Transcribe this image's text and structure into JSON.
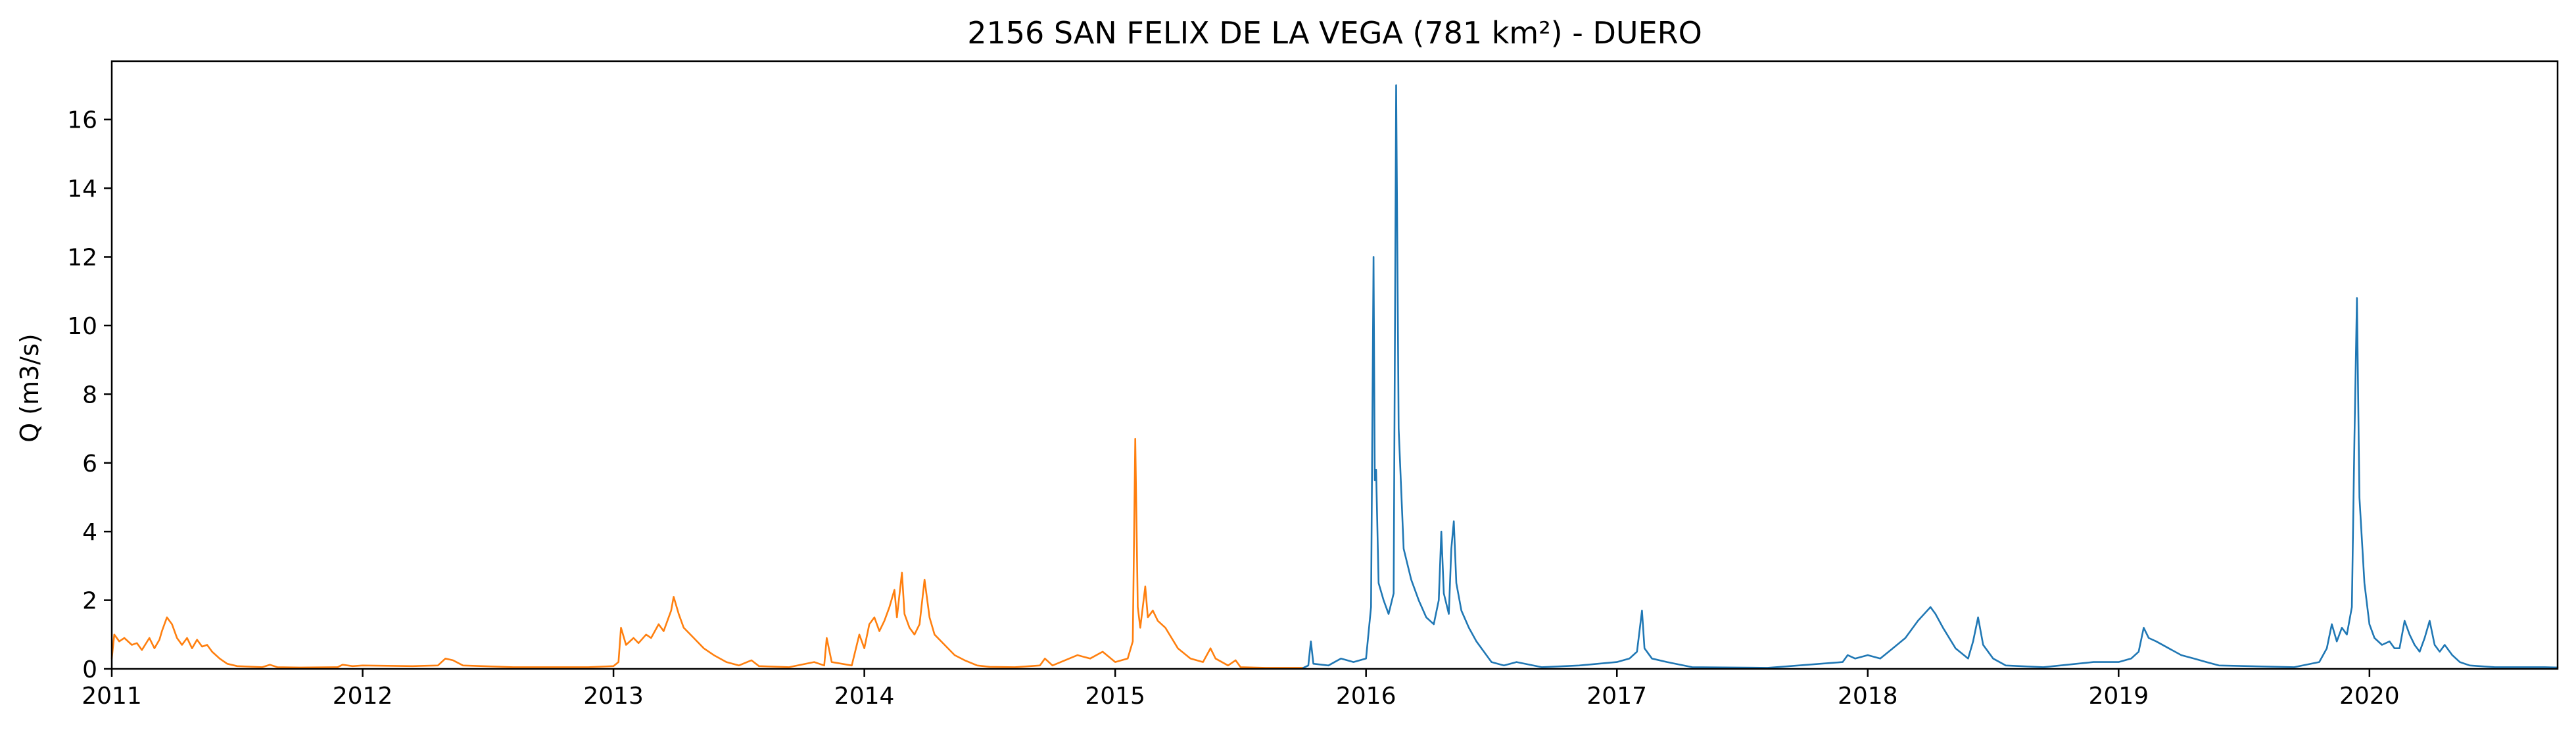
{
  "chart_data": {
    "type": "line",
    "title": "2156 SAN FELIX DE LA VEGA (781 km²) - DUERO",
    "xlabel": "",
    "ylabel": "Q (m3/s)",
    "xlim": [
      2011.0,
      2020.75
    ],
    "ylim": [
      0,
      17.7
    ],
    "x_ticks": [
      2011,
      2012,
      2013,
      2014,
      2015,
      2016,
      2017,
      2018,
      2019,
      2020
    ],
    "x_tick_labels": [
      "2011",
      "2012",
      "2013",
      "2014",
      "2015",
      "2016",
      "2017",
      "2018",
      "2019",
      "2020"
    ],
    "y_ticks": [
      0,
      2,
      4,
      6,
      8,
      10,
      12,
      14,
      16
    ],
    "y_tick_labels": [
      "0",
      "2",
      "4",
      "6",
      "8",
      "10",
      "12",
      "14",
      "16"
    ],
    "grid": false,
    "legend": "none",
    "x_unit": "year",
    "series": [
      {
        "color": "#ff7f0e",
        "points": [
          [
            2011.0,
            0.3
          ],
          [
            2011.01,
            1.0
          ],
          [
            2011.03,
            0.8
          ],
          [
            2011.05,
            0.9
          ],
          [
            2011.08,
            0.7
          ],
          [
            2011.1,
            0.75
          ],
          [
            2011.12,
            0.55
          ],
          [
            2011.15,
            0.9
          ],
          [
            2011.17,
            0.6
          ],
          [
            2011.19,
            0.85
          ],
          [
            2011.2,
            1.1
          ],
          [
            2011.22,
            1.5
          ],
          [
            2011.24,
            1.3
          ],
          [
            2011.26,
            0.9
          ],
          [
            2011.28,
            0.7
          ],
          [
            2011.3,
            0.9
          ],
          [
            2011.32,
            0.6
          ],
          [
            2011.34,
            0.85
          ],
          [
            2011.36,
            0.65
          ],
          [
            2011.38,
            0.7
          ],
          [
            2011.4,
            0.5
          ],
          [
            2011.43,
            0.3
          ],
          [
            2011.46,
            0.15
          ],
          [
            2011.5,
            0.08
          ],
          [
            2011.6,
            0.05
          ],
          [
            2011.63,
            0.12
          ],
          [
            2011.66,
            0.05
          ],
          [
            2011.75,
            0.04
          ],
          [
            2011.9,
            0.05
          ],
          [
            2011.92,
            0.12
          ],
          [
            2011.96,
            0.08
          ],
          [
            2012.0,
            0.1
          ],
          [
            2012.2,
            0.08
          ],
          [
            2012.3,
            0.1
          ],
          [
            2012.33,
            0.3
          ],
          [
            2012.36,
            0.25
          ],
          [
            2012.4,
            0.1
          ],
          [
            2012.6,
            0.05
          ],
          [
            2012.9,
            0.05
          ],
          [
            2013.0,
            0.08
          ],
          [
            2013.02,
            0.2
          ],
          [
            2013.03,
            1.2
          ],
          [
            2013.05,
            0.7
          ],
          [
            2013.08,
            0.9
          ],
          [
            2013.1,
            0.75
          ],
          [
            2013.13,
            1.0
          ],
          [
            2013.15,
            0.9
          ],
          [
            2013.18,
            1.3
          ],
          [
            2013.2,
            1.1
          ],
          [
            2013.23,
            1.7
          ],
          [
            2013.24,
            2.1
          ],
          [
            2013.26,
            1.6
          ],
          [
            2013.28,
            1.2
          ],
          [
            2013.32,
            0.9
          ],
          [
            2013.36,
            0.6
          ],
          [
            2013.4,
            0.4
          ],
          [
            2013.45,
            0.2
          ],
          [
            2013.5,
            0.1
          ],
          [
            2013.55,
            0.25
          ],
          [
            2013.58,
            0.08
          ],
          [
            2013.7,
            0.05
          ],
          [
            2013.8,
            0.2
          ],
          [
            2013.84,
            0.1
          ],
          [
            2013.85,
            0.9
          ],
          [
            2013.87,
            0.2
          ],
          [
            2013.95,
            0.1
          ],
          [
            2013.98,
            1.0
          ],
          [
            2014.0,
            0.6
          ],
          [
            2014.02,
            1.3
          ],
          [
            2014.04,
            1.5
          ],
          [
            2014.06,
            1.1
          ],
          [
            2014.08,
            1.4
          ],
          [
            2014.1,
            1.8
          ],
          [
            2014.12,
            2.3
          ],
          [
            2014.13,
            1.5
          ],
          [
            2014.15,
            2.8
          ],
          [
            2014.16,
            1.6
          ],
          [
            2014.18,
            1.2
          ],
          [
            2014.2,
            1.0
          ],
          [
            2014.22,
            1.3
          ],
          [
            2014.24,
            2.6
          ],
          [
            2014.26,
            1.5
          ],
          [
            2014.28,
            1.0
          ],
          [
            2014.32,
            0.7
          ],
          [
            2014.36,
            0.4
          ],
          [
            2014.4,
            0.25
          ],
          [
            2014.45,
            0.1
          ],
          [
            2014.5,
            0.06
          ],
          [
            2014.6,
            0.05
          ],
          [
            2014.7,
            0.1
          ],
          [
            2014.72,
            0.3
          ],
          [
            2014.75,
            0.1
          ],
          [
            2014.85,
            0.4
          ],
          [
            2014.9,
            0.3
          ],
          [
            2014.95,
            0.5
          ],
          [
            2015.0,
            0.2
          ],
          [
            2015.05,
            0.3
          ],
          [
            2015.07,
            0.8
          ],
          [
            2015.08,
            6.7
          ],
          [
            2015.09,
            1.8
          ],
          [
            2015.1,
            1.2
          ],
          [
            2015.12,
            2.4
          ],
          [
            2015.13,
            1.5
          ],
          [
            2015.15,
            1.7
          ],
          [
            2015.17,
            1.4
          ],
          [
            2015.2,
            1.2
          ],
          [
            2015.25,
            0.6
          ],
          [
            2015.3,
            0.3
          ],
          [
            2015.35,
            0.2
          ],
          [
            2015.38,
            0.6
          ],
          [
            2015.4,
            0.3
          ],
          [
            2015.45,
            0.1
          ],
          [
            2015.48,
            0.25
          ],
          [
            2015.5,
            0.05
          ],
          [
            2015.6,
            0.03
          ],
          [
            2015.7,
            0.03
          ],
          [
            2015.75,
            0.03
          ]
        ]
      },
      {
        "color": "#1f77b4",
        "points": [
          [
            2015.75,
            0.03
          ],
          [
            2015.77,
            0.1
          ],
          [
            2015.78,
            0.8
          ],
          [
            2015.79,
            0.15
          ],
          [
            2015.85,
            0.1
          ],
          [
            2015.9,
            0.3
          ],
          [
            2015.95,
            0.2
          ],
          [
            2016.0,
            0.3
          ],
          [
            2016.02,
            1.8
          ],
          [
            2016.03,
            12.0
          ],
          [
            2016.035,
            5.5
          ],
          [
            2016.04,
            5.8
          ],
          [
            2016.05,
            2.5
          ],
          [
            2016.07,
            2.0
          ],
          [
            2016.09,
            1.6
          ],
          [
            2016.11,
            2.2
          ],
          [
            2016.12,
            17.0
          ],
          [
            2016.13,
            7.0
          ],
          [
            2016.15,
            3.5
          ],
          [
            2016.18,
            2.6
          ],
          [
            2016.21,
            2.0
          ],
          [
            2016.24,
            1.5
          ],
          [
            2016.27,
            1.3
          ],
          [
            2016.29,
            2.0
          ],
          [
            2016.3,
            4.0
          ],
          [
            2016.31,
            2.2
          ],
          [
            2016.33,
            1.6
          ],
          [
            2016.34,
            3.5
          ],
          [
            2016.35,
            4.3
          ],
          [
            2016.36,
            2.5
          ],
          [
            2016.38,
            1.7
          ],
          [
            2016.41,
            1.2
          ],
          [
            2016.44,
            0.8
          ],
          [
            2016.47,
            0.5
          ],
          [
            2016.5,
            0.2
          ],
          [
            2016.55,
            0.1
          ],
          [
            2016.6,
            0.2
          ],
          [
            2016.7,
            0.05
          ],
          [
            2016.85,
            0.1
          ],
          [
            2017.0,
            0.2
          ],
          [
            2017.05,
            0.3
          ],
          [
            2017.08,
            0.5
          ],
          [
            2017.1,
            1.7
          ],
          [
            2017.11,
            0.6
          ],
          [
            2017.14,
            0.3
          ],
          [
            2017.2,
            0.2
          ],
          [
            2017.3,
            0.05
          ],
          [
            2017.6,
            0.03
          ],
          [
            2017.9,
            0.2
          ],
          [
            2017.92,
            0.4
          ],
          [
            2017.95,
            0.3
          ],
          [
            2018.0,
            0.4
          ],
          [
            2018.05,
            0.3
          ],
          [
            2018.1,
            0.6
          ],
          [
            2018.15,
            0.9
          ],
          [
            2018.2,
            1.4
          ],
          [
            2018.25,
            1.8
          ],
          [
            2018.27,
            1.6
          ],
          [
            2018.3,
            1.2
          ],
          [
            2018.35,
            0.6
          ],
          [
            2018.4,
            0.3
          ],
          [
            2018.42,
            0.8
          ],
          [
            2018.44,
            1.5
          ],
          [
            2018.46,
            0.7
          ],
          [
            2018.5,
            0.3
          ],
          [
            2018.55,
            0.1
          ],
          [
            2018.7,
            0.05
          ],
          [
            2018.9,
            0.2
          ],
          [
            2019.0,
            0.2
          ],
          [
            2019.05,
            0.3
          ],
          [
            2019.08,
            0.5
          ],
          [
            2019.1,
            1.2
          ],
          [
            2019.12,
            0.9
          ],
          [
            2019.15,
            0.8
          ],
          [
            2019.2,
            0.6
          ],
          [
            2019.25,
            0.4
          ],
          [
            2019.3,
            0.3
          ],
          [
            2019.35,
            0.2
          ],
          [
            2019.4,
            0.1
          ],
          [
            2019.7,
            0.05
          ],
          [
            2019.8,
            0.2
          ],
          [
            2019.83,
            0.6
          ],
          [
            2019.85,
            1.3
          ],
          [
            2019.87,
            0.8
          ],
          [
            2019.89,
            1.2
          ],
          [
            2019.91,
            1.0
          ],
          [
            2019.93,
            1.8
          ],
          [
            2019.94,
            6.7
          ],
          [
            2019.95,
            10.8
          ],
          [
            2019.96,
            5.0
          ],
          [
            2019.98,
            2.5
          ],
          [
            2020.0,
            1.3
          ],
          [
            2020.02,
            0.9
          ],
          [
            2020.05,
            0.7
          ],
          [
            2020.08,
            0.8
          ],
          [
            2020.1,
            0.6
          ],
          [
            2020.12,
            0.6
          ],
          [
            2020.14,
            1.4
          ],
          [
            2020.16,
            1.0
          ],
          [
            2020.18,
            0.7
          ],
          [
            2020.2,
            0.5
          ],
          [
            2020.22,
            0.9
          ],
          [
            2020.24,
            1.4
          ],
          [
            2020.26,
            0.7
          ],
          [
            2020.28,
            0.5
          ],
          [
            2020.3,
            0.7
          ],
          [
            2020.33,
            0.4
          ],
          [
            2020.36,
            0.2
          ],
          [
            2020.4,
            0.1
          ],
          [
            2020.5,
            0.05
          ],
          [
            2020.6,
            0.05
          ],
          [
            2020.7,
            0.05
          ],
          [
            2020.75,
            0.04
          ]
        ]
      }
    ]
  }
}
